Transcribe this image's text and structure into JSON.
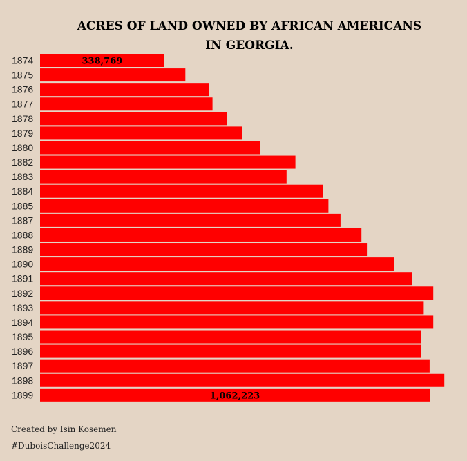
{
  "chart_data": {
    "type": "bar",
    "orientation": "horizontal",
    "title_lines": [
      "ACRES OF LAND OWNED BY AFRICAN AMERICANS",
      "IN GEORGIA."
    ],
    "categories": [
      "1874",
      "1875",
      "1876",
      "1877",
      "1878",
      "1879",
      "1880",
      "1882",
      "1883",
      "1884",
      "1885",
      "1887",
      "1888",
      "1889",
      "1890",
      "1891",
      "1892",
      "1893",
      "1894",
      "1895",
      "1896",
      "1897",
      "1898",
      "1899"
    ],
    "values": [
      338769,
      396000,
      461000,
      470000,
      510000,
      551000,
      600000,
      696000,
      672000,
      771000,
      786000,
      819000,
      876000,
      891000,
      965000,
      1015000,
      1072000,
      1046000,
      1072000,
      1038000,
      1038000,
      1062000,
      1102000,
      1062223
    ],
    "data_labels": [
      {
        "category": "1874",
        "text": "338,769"
      },
      {
        "category": "1899",
        "text": "1,062,223"
      }
    ],
    "bar_color": "#ff0000",
    "grid": false,
    "legend": "none"
  },
  "caption": {
    "line1": "Created by Isin Kosemen",
    "line2": "#DuboisChallenge2024"
  },
  "colors": {
    "background": "#e4d5c5",
    "bar": "#ff0000",
    "text": "#000000"
  }
}
